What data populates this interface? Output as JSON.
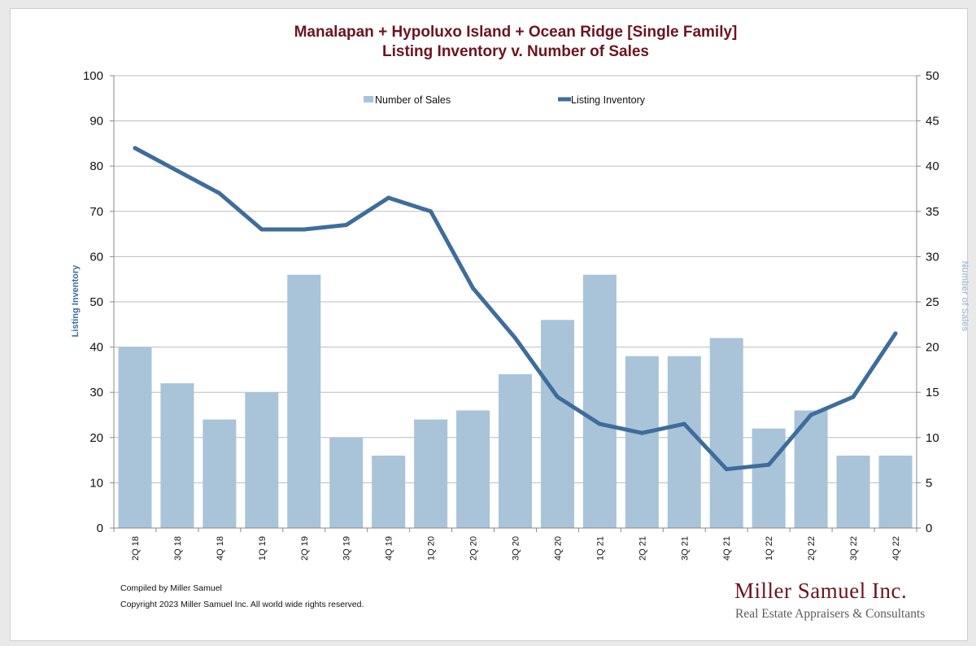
{
  "chart_data": {
    "type": "bar+line",
    "title_line1": "Manalapan + Hypoluxo Island + Ocean Ridge [Single Family]",
    "title_line2": "Listing Inventory v. Number of Sales",
    "categories": [
      "2Q 18",
      "3Q 18",
      "4Q 18",
      "1Q 19",
      "2Q 19",
      "3Q 19",
      "4Q 19",
      "1Q 20",
      "2Q 20",
      "3Q 20",
      "4Q 20",
      "1Q 21",
      "2Q 21",
      "3Q 21",
      "4Q 21",
      "1Q 22",
      "2Q 22",
      "3Q 22",
      "4Q 22"
    ],
    "series": [
      {
        "name": "Number of Sales",
        "type": "bar",
        "axis": "right",
        "color": "#a9c4d9",
        "values": [
          20,
          16,
          12,
          15,
          28,
          10,
          8,
          12,
          13,
          17,
          23,
          28,
          19,
          19,
          21,
          11,
          13,
          8,
          8
        ]
      },
      {
        "name": "Listing Inventory",
        "type": "line",
        "axis": "left",
        "color": "#3e6d9c",
        "values": [
          84,
          79,
          74,
          66,
          66,
          67,
          73,
          70,
          53,
          42,
          29,
          23,
          21,
          23,
          13,
          14,
          25,
          29,
          43
        ]
      }
    ],
    "ylabel_left": "Listing Inventory",
    "ylabel_right": "Number of Sales",
    "ylim_left": [
      0,
      100
    ],
    "ylim_right": [
      0,
      50
    ],
    "yticks_left": [
      "0",
      "10",
      "20",
      "30",
      "40",
      "50",
      "60",
      "70",
      "80",
      "90",
      "100"
    ],
    "yticks_right": [
      "0",
      "5",
      "10",
      "15",
      "20",
      "25",
      "30",
      "35",
      "40",
      "45",
      "50"
    ],
    "legend_placement": "top-center",
    "grid": true
  },
  "footer": {
    "compiled": "Compiled by Miller Samuel",
    "copyright": "Copyright 2023 Miller Samuel Inc.  All world wide rights reserved."
  },
  "brand": {
    "name": "Miller Samuel Inc.",
    "tagline": "Real Estate Appraisers & Consultants"
  }
}
